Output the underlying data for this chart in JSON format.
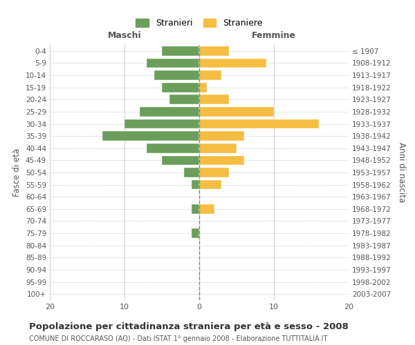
{
  "age_groups": [
    "0-4",
    "5-9",
    "10-14",
    "15-19",
    "20-24",
    "25-29",
    "30-34",
    "35-39",
    "40-44",
    "45-49",
    "50-54",
    "55-59",
    "60-64",
    "65-69",
    "70-74",
    "75-79",
    "80-84",
    "85-89",
    "90-94",
    "95-99",
    "100+"
  ],
  "birth_years": [
    "2003-2007",
    "1998-2002",
    "1993-1997",
    "1988-1992",
    "1983-1987",
    "1978-1982",
    "1973-1977",
    "1968-1972",
    "1963-1967",
    "1958-1962",
    "1953-1957",
    "1948-1952",
    "1943-1947",
    "1938-1942",
    "1933-1937",
    "1928-1932",
    "1923-1927",
    "1918-1922",
    "1913-1917",
    "1908-1912",
    "≤ 1907"
  ],
  "maschi": [
    5,
    7,
    6,
    5,
    4,
    8,
    10,
    13,
    7,
    5,
    2,
    1,
    0,
    1,
    0,
    1,
    0,
    0,
    0,
    0,
    0
  ],
  "femmine": [
    4,
    9,
    3,
    1,
    4,
    10,
    16,
    6,
    5,
    6,
    4,
    3,
    0,
    2,
    0,
    0,
    0,
    0,
    0,
    0,
    0
  ],
  "color_maschi": "#6a9e5a",
  "color_femmine": "#f5be42",
  "title": "Popolazione per cittadinanza straniera per età e sesso - 2008",
  "subtitle": "COMUNE DI ROCCARASO (AQ) - Dati ISTAT 1° gennaio 2008 - Elaborazione TUTTITALIA.IT",
  "xlabel_left": "Maschi",
  "xlabel_right": "Femmine",
  "ylabel_left": "Fasce di età",
  "ylabel_right": "Anni di nascita",
  "legend_maschi": "Stranieri",
  "legend_femmine": "Straniere",
  "xlim": 20,
  "bg_color": "#ffffff",
  "grid_color": "#cccccc",
  "bar_edgecolor": "#ffffff"
}
